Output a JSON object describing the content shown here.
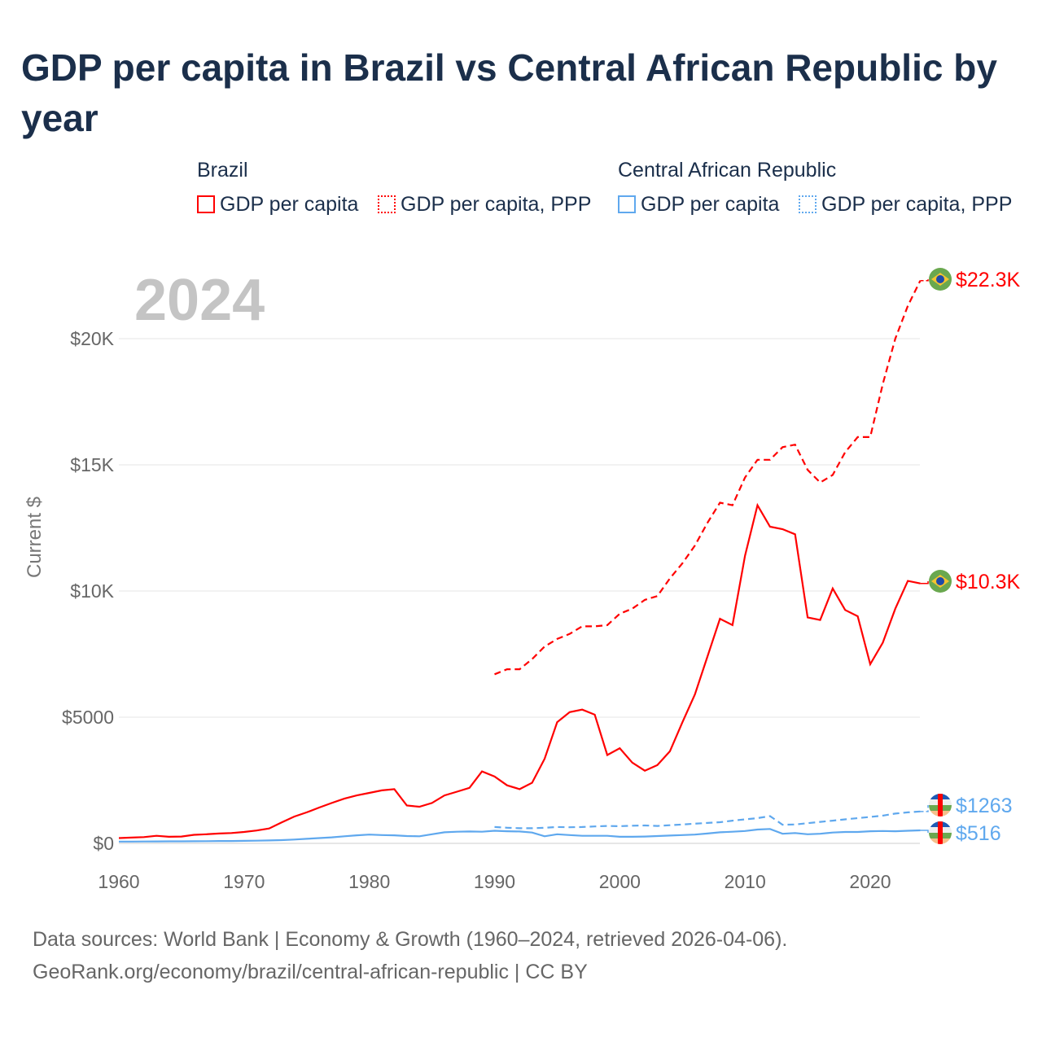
{
  "title": "GDP per capita in Brazil vs Central African Republic by year",
  "legend": {
    "group1": "Brazil",
    "group2": "Central African Republic",
    "item_gdp": "GDP per capita",
    "item_ppp": "GDP per capita, PPP"
  },
  "year_label": "2024",
  "source_line1": "Data sources: World Bank | Economy & Growth (1960–2024, retrieved 2026-04-06).",
  "source_line2": "GeoRank.org/economy/brazil/central-african-republic | CC BY",
  "colors": {
    "brazil": "#ff0000",
    "car": "#5fa8ee"
  },
  "chart_data": {
    "type": "line",
    "ylabel": "Current $",
    "xlim": [
      1960,
      2024
    ],
    "ylim": [
      0,
      22300
    ],
    "xticks": [
      1960,
      1970,
      1980,
      1990,
      2000,
      2010,
      2020
    ],
    "yticks": [
      {
        "v": 0,
        "l": "$0"
      },
      {
        "v": 5000,
        "l": "$5000"
      },
      {
        "v": 10000,
        "l": "$10K"
      },
      {
        "v": 15000,
        "l": "$15K"
      },
      {
        "v": 20000,
        "l": "$20K"
      }
    ],
    "series": [
      {
        "name": "Brazil GDP per capita",
        "color": "#ff0000",
        "dash": false,
        "start": 1960,
        "end_label": "$10.3K",
        "flag": "brazil",
        "values": [
          210,
          230,
          250,
          300,
          260,
          270,
          340,
          360,
          390,
          410,
          450,
          510,
          590,
          830,
          1060,
          1230,
          1420,
          1600,
          1770,
          1900,
          2000,
          2100,
          2150,
          1500,
          1450,
          1600,
          1900,
          2050,
          2200,
          2850,
          2650,
          2300,
          2150,
          2400,
          3350,
          4800,
          5200,
          5300,
          5100,
          3500,
          3770,
          3200,
          2880,
          3100,
          3650,
          4800,
          5900,
          7400,
          8900,
          8650,
          11400,
          13400,
          12550,
          12450,
          12250,
          8950,
          8850,
          10100,
          9250,
          9000,
          7100,
          7950,
          9300,
          10400,
          10300
        ]
      },
      {
        "name": "Brazil GDP per capita, PPP",
        "color": "#ff0000",
        "dash": true,
        "start": 1990,
        "end_label": "$22.3K",
        "flag": "brazil",
        "values": [
          6700,
          6900,
          6900,
          7300,
          7800,
          8100,
          8300,
          8600,
          8600,
          8650,
          9100,
          9300,
          9650,
          9800,
          10500,
          11100,
          11800,
          12700,
          13500,
          13400,
          14500,
          15200,
          15200,
          15700,
          15800,
          14800,
          14300,
          14600,
          15500,
          16100,
          16100,
          18200,
          20000,
          21300,
          22300
        ]
      },
      {
        "name": "Central African Republic GDP per capita",
        "color": "#5fa8ee",
        "dash": false,
        "start": 1960,
        "end_label": "$516",
        "flag": "car",
        "values": [
          70,
          72,
          75,
          78,
          80,
          82,
          85,
          88,
          92,
          95,
          100,
          105,
          115,
          130,
          150,
          180,
          210,
          240,
          280,
          320,
          350,
          330,
          320,
          290,
          280,
          360,
          440,
          460,
          470,
          460,
          500,
          480,
          470,
          430,
          280,
          360,
          330,
          300,
          300,
          300,
          260,
          260,
          270,
          290,
          310,
          330,
          350,
          390,
          440,
          460,
          490,
          550,
          570,
          380,
          410,
          360,
          380,
          430,
          450,
          450,
          480,
          490,
          480,
          500,
          516
        ]
      },
      {
        "name": "Central African Republic GDP per capita, PPP",
        "color": "#5fa8ee",
        "dash": true,
        "start": 1990,
        "end_label": "$1263",
        "flag": "car",
        "values": [
          650,
          620,
          600,
          600,
          620,
          650,
          640,
          650,
          670,
          690,
          680,
          700,
          710,
          690,
          720,
          750,
          780,
          810,
          840,
          900,
          950,
          1000,
          1080,
          740,
          750,
          800,
          850,
          900,
          950,
          1000,
          1050,
          1100,
          1180,
          1230,
          1263
        ]
      }
    ]
  }
}
